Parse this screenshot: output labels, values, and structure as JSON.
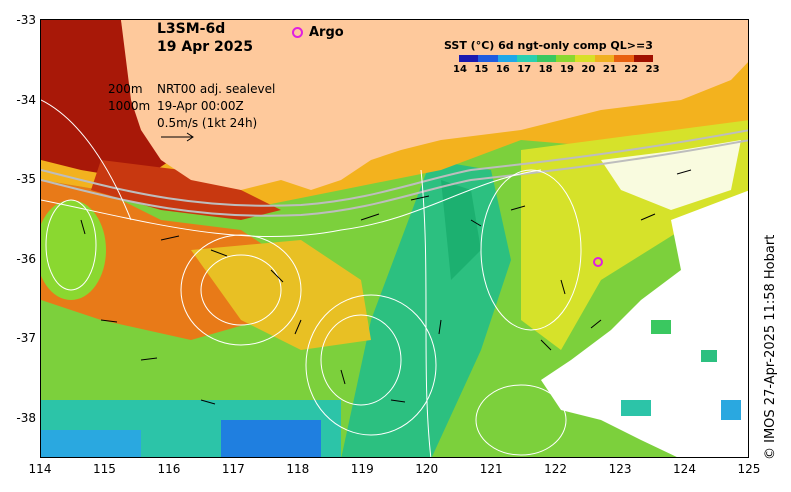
{
  "header": {
    "product": "L3SM-6d",
    "date": "19 Apr 2025"
  },
  "legend": {
    "argo_label": "Argo",
    "isobath_200": "200m",
    "isobath_1000": "1000m",
    "sealevel": "NRT00 adj. sealevel",
    "timestamp": "19-Apr 00:00Z",
    "velocity_scale": "0.5m/s (1kt 24h)"
  },
  "colorbar": {
    "title": "SST (°C) 6d ngt-only comp QL>=3",
    "labels": [
      "14",
      "15",
      "16",
      "17",
      "18",
      "19",
      "20",
      "21",
      "22",
      "23"
    ],
    "colors": [
      "#1a1ab0",
      "#1f5ce0",
      "#1fa8e8",
      "#2ad0b0",
      "#3ac860",
      "#8ad830",
      "#d8e028",
      "#f0b020",
      "#e86010",
      "#a01000"
    ]
  },
  "axes": {
    "y_ticks": [
      "-33",
      "-34",
      "-35",
      "-36",
      "-37",
      "-38"
    ],
    "x_ticks": [
      "114",
      "115",
      "116",
      "117",
      "118",
      "119",
      "120",
      "121",
      "122",
      "123",
      "124",
      "125"
    ]
  },
  "credit": "© IMOS 27-Apr-2025 11:58 Hobart"
}
